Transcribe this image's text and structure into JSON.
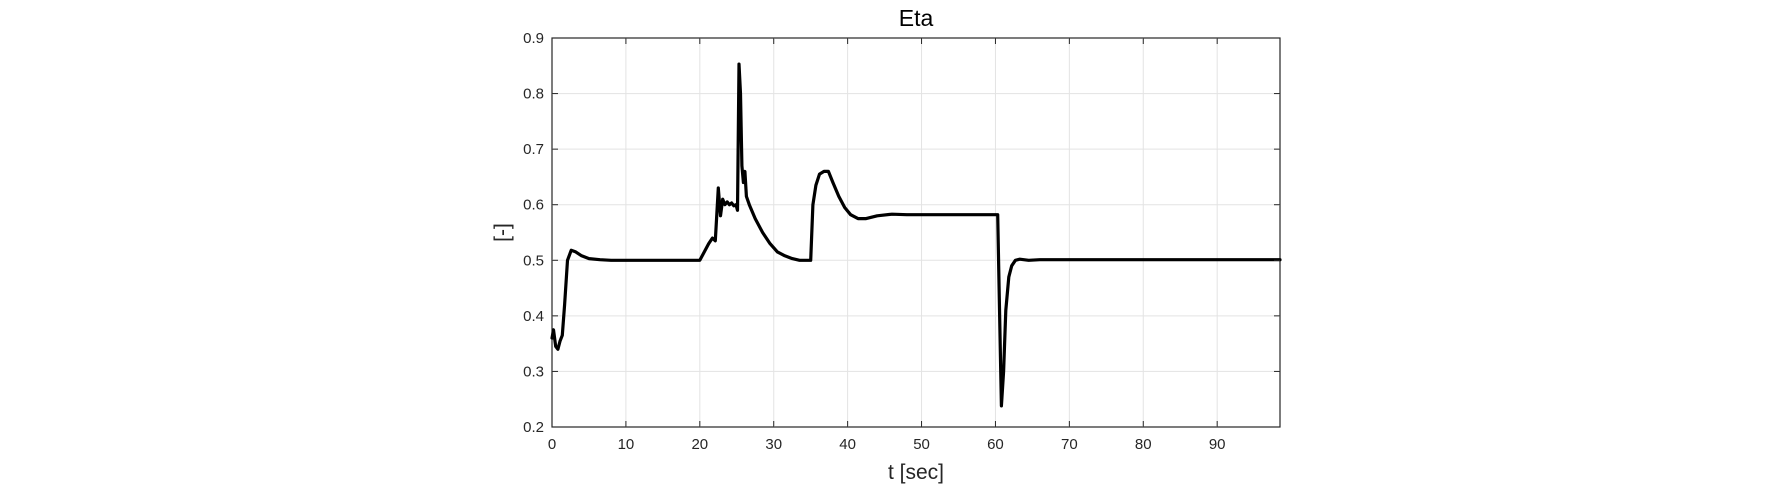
{
  "chart_data": {
    "type": "line",
    "title": "Eta",
    "xlabel": "t [sec]",
    "ylabel": "[-]",
    "xlim": [
      0,
      98.5
    ],
    "ylim": [
      0.2,
      0.9
    ],
    "xticks": [
      0,
      10,
      20,
      30,
      40,
      50,
      60,
      70,
      80,
      90
    ],
    "yticks": [
      0.2,
      0.3,
      0.4,
      0.5,
      0.6,
      0.7,
      0.8,
      0.9
    ],
    "xtick_labels": [
      "0",
      "10",
      "20",
      "30",
      "40",
      "50",
      "60",
      "70",
      "80",
      "90"
    ],
    "ytick_labels": [
      "0.2",
      "0.3",
      "0.4",
      "0.5",
      "0.6",
      "0.7",
      "0.8",
      "0.9"
    ],
    "grid": true,
    "series": [
      {
        "color": "#000000",
        "x": [
          0,
          0.2,
          0.5,
          0.8,
          1.1,
          1.4,
          1.7,
          2.1,
          2.6,
          3.2,
          4,
          5,
          6.5,
          8,
          10,
          13,
          16,
          19,
          20,
          20.6,
          21.2,
          21.7,
          22.1,
          22.5,
          22.8,
          23.1,
          23.4,
          23.7,
          24,
          24.3,
          24.6,
          24.9,
          25.1,
          25.3,
          25.5,
          25.7,
          25.9,
          26.1,
          26.3,
          26.7,
          27.5,
          28.5,
          29.5,
          30.5,
          31.5,
          32.5,
          33.5,
          34.5,
          35,
          35.3,
          35.7,
          36.2,
          36.8,
          37.4,
          38,
          38.8,
          39.6,
          40.4,
          41.4,
          42.5,
          44,
          46,
          48,
          50,
          55,
          58,
          60.3,
          60.5,
          60.8,
          61.1,
          61.4,
          61.8,
          62.2,
          62.7,
          63.3,
          64.5,
          66,
          70,
          80,
          90,
          98.5
        ],
        "y": [
          0.36,
          0.375,
          0.345,
          0.34,
          0.355,
          0.365,
          0.42,
          0.5,
          0.518,
          0.515,
          0.508,
          0.503,
          0.501,
          0.5,
          0.5,
          0.5,
          0.5,
          0.5,
          0.5,
          0.515,
          0.53,
          0.54,
          0.535,
          0.63,
          0.58,
          0.61,
          0.6,
          0.605,
          0.6,
          0.603,
          0.598,
          0.6,
          0.59,
          0.853,
          0.8,
          0.67,
          0.64,
          0.66,
          0.615,
          0.6,
          0.575,
          0.55,
          0.53,
          0.515,
          0.508,
          0.503,
          0.5,
          0.5,
          0.5,
          0.6,
          0.635,
          0.655,
          0.66,
          0.66,
          0.64,
          0.615,
          0.595,
          0.582,
          0.575,
          0.575,
          0.58,
          0.583,
          0.582,
          0.582,
          0.582,
          0.582,
          0.582,
          0.45,
          0.238,
          0.3,
          0.41,
          0.47,
          0.49,
          0.5,
          0.502,
          0.5,
          0.501,
          0.501,
          0.501,
          0.501,
          0.501
        ]
      }
    ]
  }
}
